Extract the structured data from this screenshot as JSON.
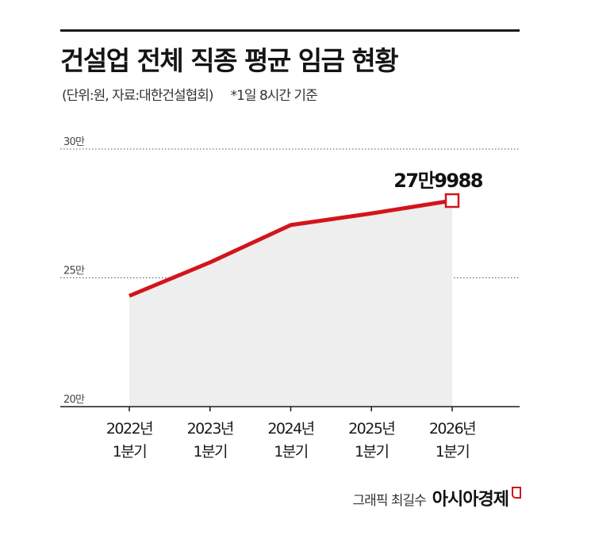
{
  "title": "건설업 전체 직종 평균 임금 현황",
  "subtitle": "(단위:원, 자료:대한건설협회)",
  "note": "*1일 8시간 기준",
  "credit": {
    "person": "그래픽 최길수",
    "brand": "아시아경제"
  },
  "colors": {
    "line": "#d3141b",
    "area": "#eeeeee",
    "grid": "#555555",
    "text": "#1a1a1a"
  },
  "chart_data": {
    "type": "area",
    "categories": [
      [
        "2022년",
        "1분기"
      ],
      [
        "2023년",
        "1분기"
      ],
      [
        "2024년",
        "1분기"
      ],
      [
        "2025년",
        "1분기"
      ],
      [
        "2026년",
        "1분기"
      ]
    ],
    "values": [
      243000,
      256000,
      270500,
      275000,
      279988
    ],
    "ylim": [
      200000,
      300000
    ],
    "yticks": [
      {
        "value": 300000,
        "label": "30만"
      },
      {
        "value": 250000,
        "label": "25만"
      },
      {
        "value": 200000,
        "label": "20만"
      }
    ],
    "grid": "dotted horizontal",
    "annotation": {
      "index": 4,
      "label": "27만9988"
    }
  }
}
